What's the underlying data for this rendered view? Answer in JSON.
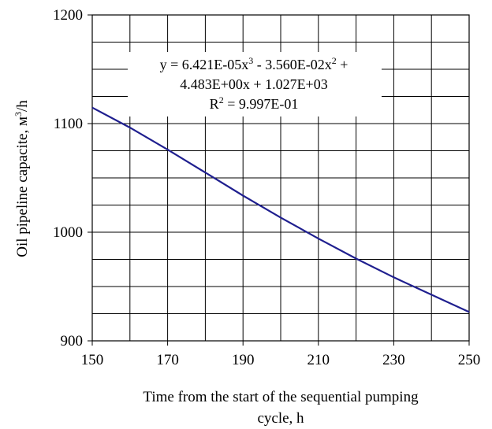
{
  "chart_data": {
    "type": "line",
    "xlabel_line1": "Time from the start of the sequential pumping",
    "xlabel_line2": "cycle, h",
    "ylabel_main": "Oil pipeline capacite, м",
    "ylabel_sup": "3",
    "ylabel_tail": "/h",
    "xlim": [
      150,
      250
    ],
    "ylim": [
      900,
      1200
    ],
    "x_ticks": [
      150,
      170,
      190,
      210,
      230,
      250
    ],
    "y_ticks": [
      900,
      1000,
      1100,
      1200
    ],
    "x_minor_grid_step": 10,
    "y_minor_grid_step": 25,
    "grid": true,
    "annotation": {
      "line1_a": "y = 6.421E-05x",
      "line1_a_sup": "3",
      "line1_b": " - 3.560E-02x",
      "line1_b_sup": "2",
      "line1_c": " +",
      "line2": "4.483E+00x + 1.027E+03",
      "line3_a": "R",
      "line3_sup": "2",
      "line3_b": " = 9.997E-01"
    },
    "series": [
      {
        "color": "#1f1f8f",
        "x": [
          150,
          160,
          170,
          180,
          190,
          200,
          210,
          220,
          230,
          240,
          250
        ],
        "y": [
          1114.7,
          1096.3,
          1076.0,
          1054.9,
          1033.7,
          1013.5,
          994.1,
          975.7,
          958.5,
          942.5,
          926.5
        ]
      }
    ]
  }
}
